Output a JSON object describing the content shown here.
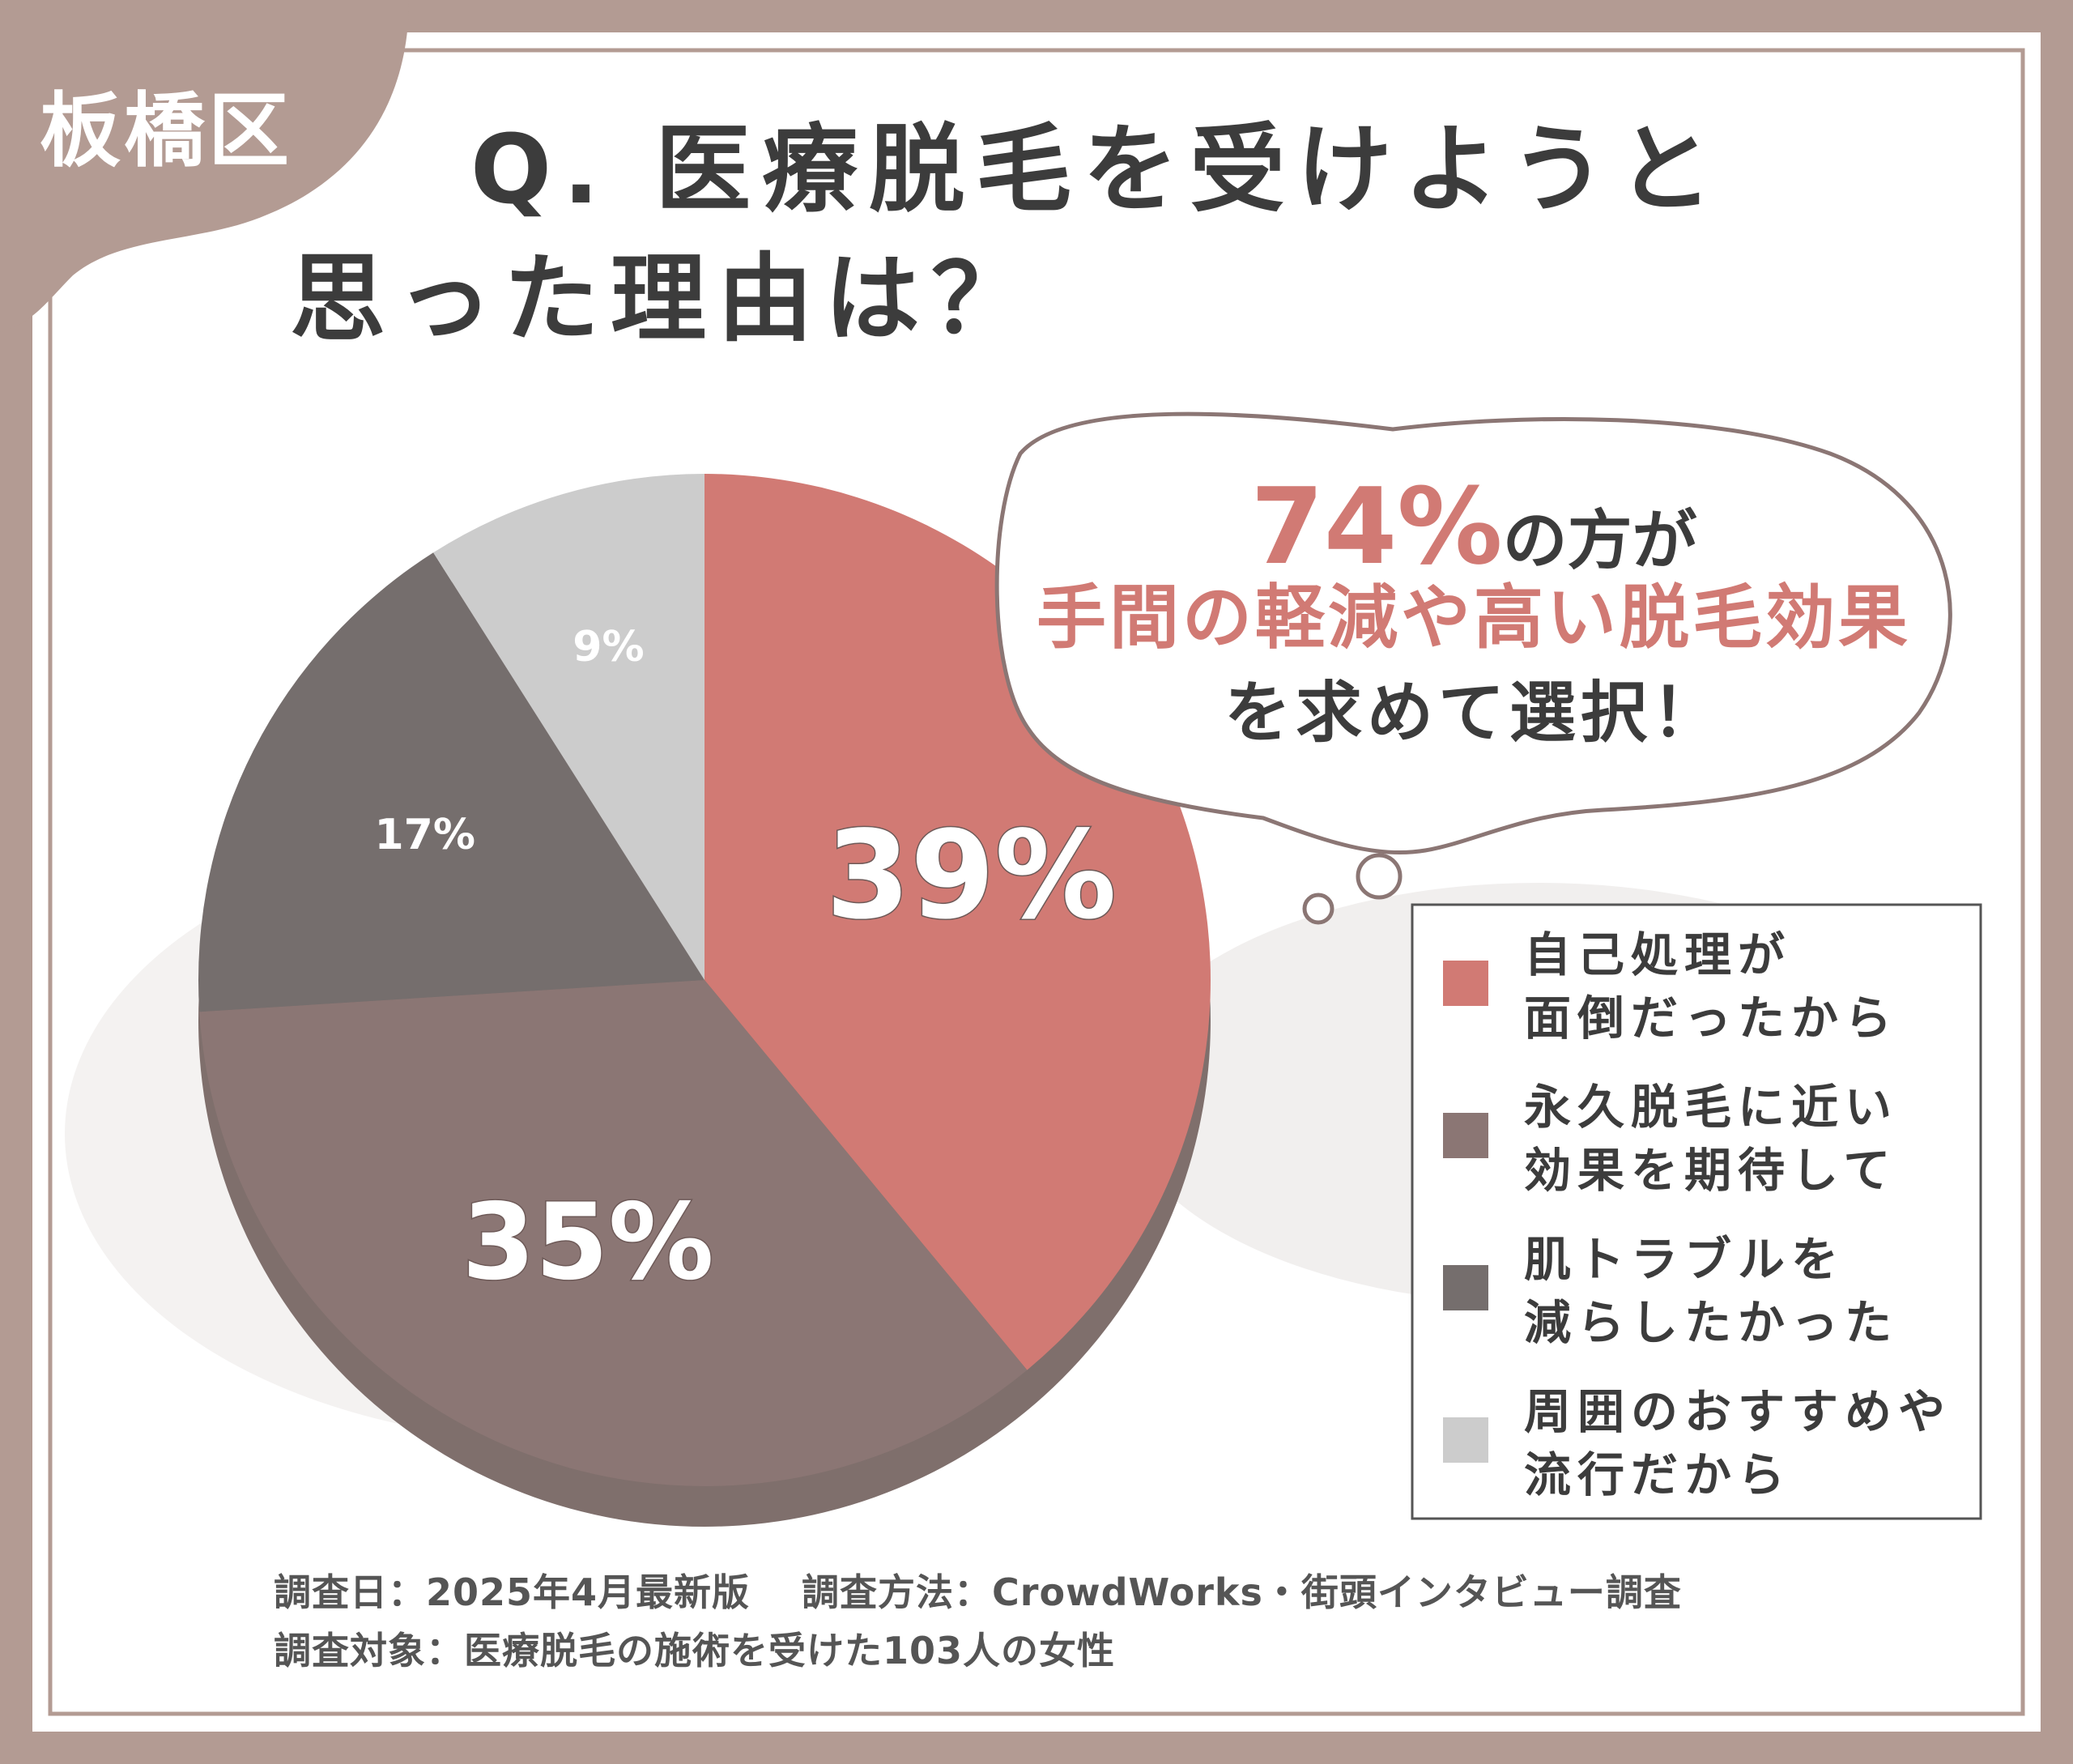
{
  "region_badge": "板橋区",
  "title_line1": "Q. 医療脱毛を受けようと",
  "title_line2": "思った理由は？",
  "bubble": {
    "highlight": "74%",
    "line1_rest": "の方が",
    "line2": "手間の軽減や高い脱毛効果",
    "line3": "を求めて選択！"
  },
  "colors": {
    "accent": "#d17a74",
    "series_1": "#d17a74",
    "series_2": "#8b7674",
    "series_3": "#756e6d",
    "series_4": "#cccccc",
    "frame": "#b39b93"
  },
  "chart_data": {
    "type": "pie",
    "slices": [
      {
        "label_line1": "自己処理が",
        "label_line2": "面倒だったから",
        "value": 39,
        "value_label": "39%"
      },
      {
        "label_line1": "永久脱毛に近い",
        "label_line2": "効果を期待して",
        "value": 35,
        "value_label": "35%"
      },
      {
        "label_line1": "肌トラブルを",
        "label_line2": "減らしたかった",
        "value": 17,
        "value_label": "17%"
      },
      {
        "label_line1": "周囲のおすすめや",
        "label_line2": "流行だから",
        "value": 9,
        "value_label": "9%"
      }
    ],
    "legend_position": "right"
  },
  "footer": {
    "line1": "調査日：2025年4月最新版　 調査方法：CrowdWorks・街頭インタビュー調査",
    "line2": "調査対象：医療脱毛の施術を受けた103人の女性"
  }
}
